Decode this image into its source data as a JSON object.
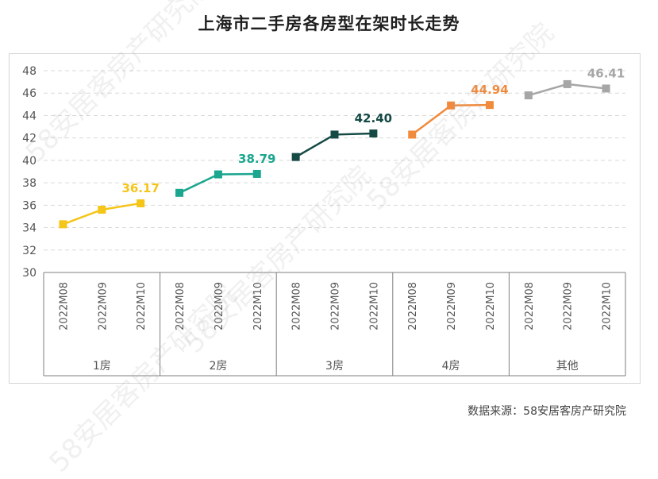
{
  "title": "上海市二手房各房型在架时长走势",
  "source": "数据来源：58安居客房产研究院",
  "watermark": "58安居客房产研究院",
  "chart_data": {
    "type": "line",
    "title": "上海市二手房各房型在架时长走势",
    "ylim": [
      30,
      48
    ],
    "yticks": [
      30,
      32,
      34,
      36,
      38,
      40,
      42,
      44,
      46,
      48
    ],
    "grid": true,
    "groups": [
      {
        "name": "1房",
        "color": "#F5C518",
        "x": [
          "2022M08",
          "2022M09",
          "2022M10"
        ],
        "values": [
          34.3,
          35.6,
          36.17
        ],
        "label": "36.17"
      },
      {
        "name": "2房",
        "color": "#1BA68F",
        "x": [
          "2022M08",
          "2022M09",
          "2022M10"
        ],
        "values": [
          37.1,
          38.75,
          38.79
        ],
        "label": "38.79"
      },
      {
        "name": "3房",
        "color": "#154A45",
        "x": [
          "2022M08",
          "2022M09",
          "2022M10"
        ],
        "values": [
          40.3,
          42.3,
          42.4
        ],
        "label": "42.40"
      },
      {
        "name": "4房",
        "color": "#F08A3C",
        "x": [
          "2022M08",
          "2022M09",
          "2022M10"
        ],
        "values": [
          42.3,
          44.9,
          44.94
        ],
        "label": "44.94"
      },
      {
        "name": "其他",
        "color": "#A6A6A6",
        "x": [
          "2022M08",
          "2022M09",
          "2022M10"
        ],
        "values": [
          45.8,
          46.8,
          46.41
        ],
        "label": "46.41"
      }
    ]
  }
}
